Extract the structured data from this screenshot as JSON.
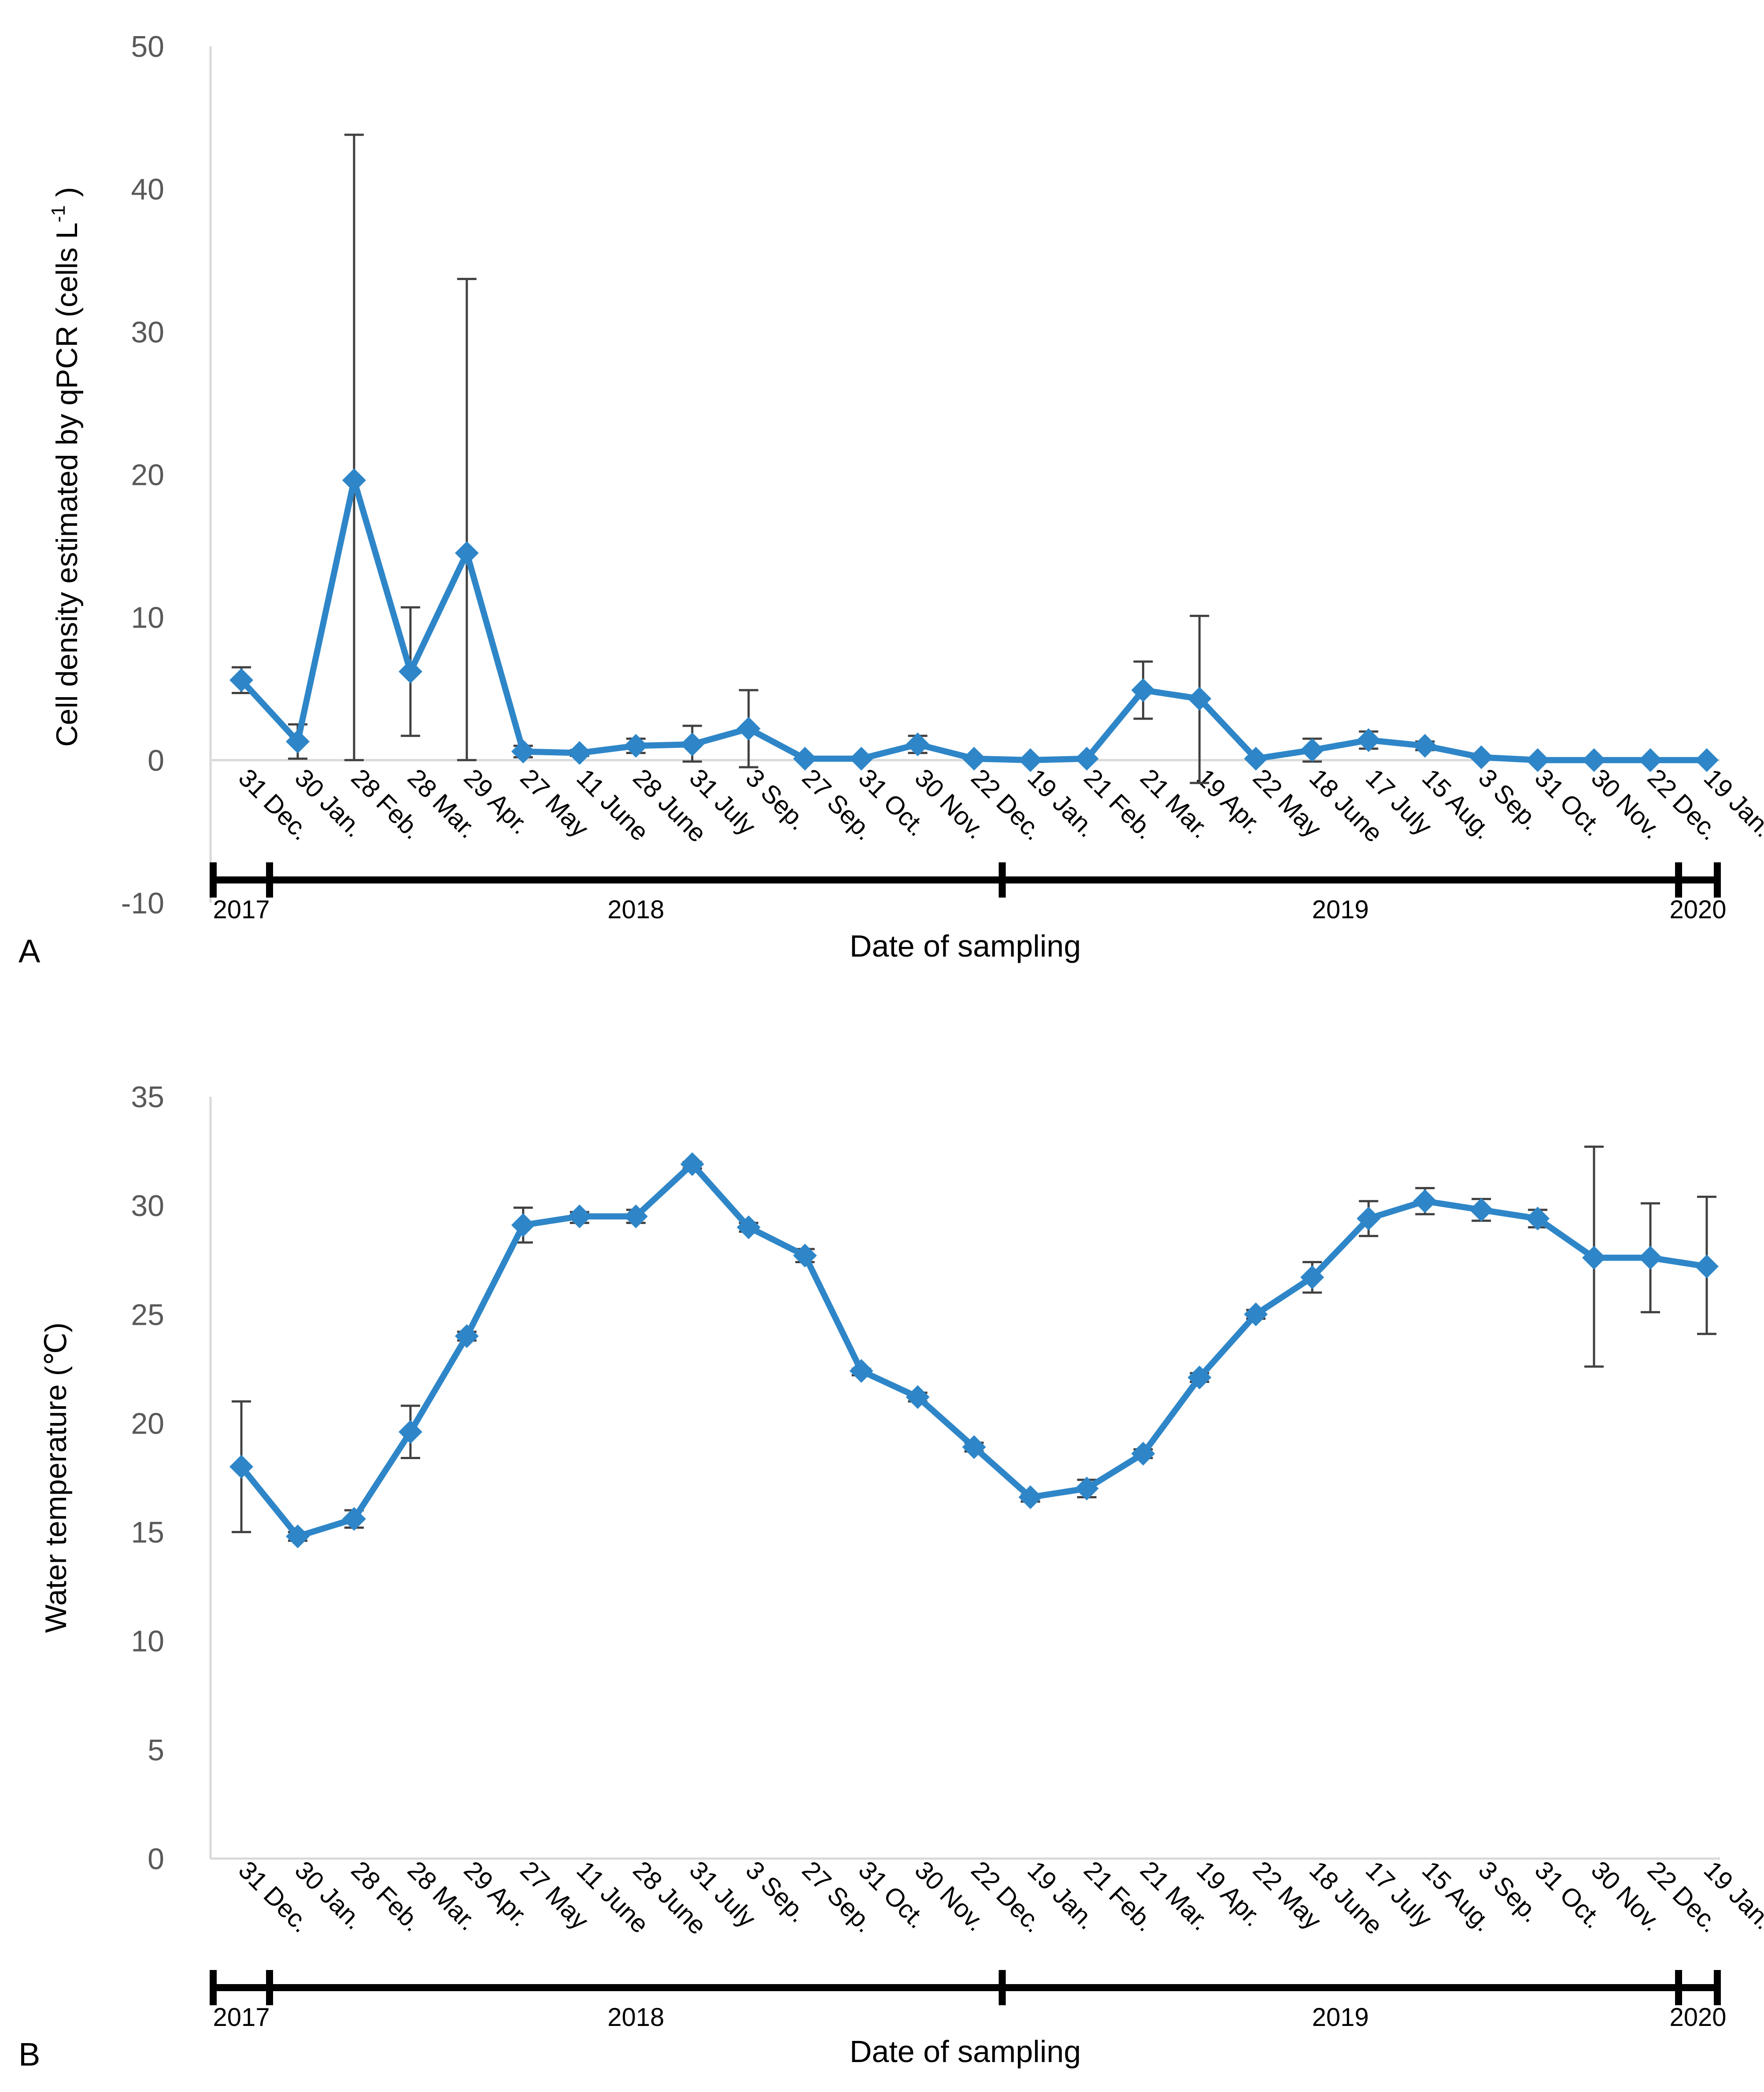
{
  "chart_data": [
    {
      "type": "line",
      "panel_label": "A",
      "ylabel_main": "Cell density estimated by qPCR (cells L",
      "ylabel_sup": "-1",
      "ylabel_end": ")",
      "xlabel": "Date of sampling",
      "ylim": [
        -10,
        50
      ],
      "yticks": [
        -10,
        0,
        10,
        20,
        30,
        40,
        50
      ],
      "series_color": "#2E86C8",
      "categories": [
        "31 Dec.",
        "30 Jan.",
        "28 Feb.",
        "28 Mar.",
        "29 Apr.",
        "27 May",
        "11 June",
        "28 June",
        "31 July",
        "3 Sep.",
        "27 Sep.",
        "31 Oct.",
        "30 Nov.",
        "22 Dec.",
        "19 Jan.",
        "21 Feb.",
        "21 Mar.",
        "19 Apr.",
        "22 May",
        "18 June",
        "17 July",
        "15 Aug.",
        "3 Sep.",
        "31 Oct.",
        "30 Nov.",
        "22 Dec.",
        "19 Jan."
      ],
      "values": [
        5.6,
        1.3,
        19.6,
        6.2,
        14.5,
        0.6,
        0.5,
        1.0,
        1.1,
        2.2,
        0.1,
        0.1,
        1.1,
        0.1,
        0.0,
        0.1,
        4.9,
        4.3,
        0.1,
        0.7,
        1.4,
        1.0,
        0.2,
        0.0,
        0.0,
        0.0,
        0.0
      ],
      "error_upper": [
        6.5,
        2.5,
        43.8,
        10.7,
        33.7,
        1.0,
        0.7,
        1.5,
        2.4,
        4.9,
        0.2,
        0.2,
        1.7,
        0.2,
        0.1,
        0.2,
        6.9,
        10.1,
        0.2,
        1.5,
        2.0,
        1.3,
        0.3,
        0.1,
        0.1,
        0.1,
        0.1
      ],
      "error_lower": [
        4.7,
        0.1,
        0.0,
        1.7,
        0.0,
        0.2,
        0.3,
        0.5,
        -0.1,
        -0.5,
        0.0,
        0.0,
        0.5,
        0.0,
        0.0,
        0.0,
        2.9,
        -1.6,
        0.0,
        -0.1,
        0.8,
        0.7,
        0.1,
        0.0,
        0.0,
        0.0,
        0.0
      ],
      "years": [
        {
          "label": "2017",
          "start": 0,
          "end": 1
        },
        {
          "label": "2018",
          "start": 1,
          "end": 13
        },
        {
          "label": "2019",
          "start": 13,
          "end": 25
        },
        {
          "label": "2020",
          "start": 25,
          "end": 26
        }
      ]
    },
    {
      "type": "line",
      "panel_label": "B",
      "ylabel_main": "Water temperature (℃)",
      "ylabel_sup": "",
      "ylabel_end": "",
      "xlabel": "Date of sampling",
      "ylim": [
        0,
        35
      ],
      "yticks": [
        0,
        5,
        10,
        15,
        20,
        25,
        30,
        35
      ],
      "series_color": "#2E86C8",
      "categories": [
        "31 Dec.",
        "30 Jan.",
        "28 Feb.",
        "28 Mar.",
        "29 Apr.",
        "27 May",
        "11 June",
        "28 June",
        "31 July",
        "3 Sep.",
        "27 Sep.",
        "31 Oct.",
        "30 Nov.",
        "22 Dec.",
        "19 Jan.",
        "21 Feb.",
        "21 Mar.",
        "19 Apr.",
        "22 May",
        "18 June",
        "17 July",
        "15 Aug.",
        "3 Sep.",
        "31 Oct.",
        "30 Nov.",
        "22 Dec.",
        "19 Jan."
      ],
      "values": [
        18.0,
        14.8,
        15.6,
        19.6,
        24.0,
        29.1,
        29.5,
        29.5,
        31.9,
        29.0,
        27.7,
        22.4,
        21.2,
        18.9,
        16.6,
        17.0,
        18.6,
        22.1,
        25.0,
        26.7,
        29.4,
        30.2,
        29.8,
        29.4,
        27.6,
        27.6,
        27.2
      ],
      "error_upper": [
        21.0,
        15.0,
        16.0,
        20.8,
        24.2,
        29.9,
        29.7,
        29.8,
        32.0,
        29.2,
        28.0,
        22.5,
        21.4,
        19.1,
        16.7,
        17.4,
        18.8,
        22.3,
        25.2,
        27.4,
        30.2,
        30.8,
        30.3,
        29.8,
        32.7,
        30.1,
        30.4
      ],
      "error_lower": [
        15.0,
        14.6,
        15.2,
        18.4,
        23.8,
        28.3,
        29.2,
        29.2,
        31.7,
        28.8,
        27.4,
        22.2,
        21.0,
        18.7,
        16.4,
        16.6,
        18.4,
        21.9,
        24.8,
        26.0,
        28.6,
        29.6,
        29.3,
        29.0,
        22.6,
        25.1,
        24.1
      ],
      "years": [
        {
          "label": "2017",
          "start": 0,
          "end": 1
        },
        {
          "label": "2018",
          "start": 1,
          "end": 13
        },
        {
          "label": "2019",
          "start": 13,
          "end": 25
        },
        {
          "label": "2020",
          "start": 25,
          "end": 26
        }
      ]
    }
  ]
}
